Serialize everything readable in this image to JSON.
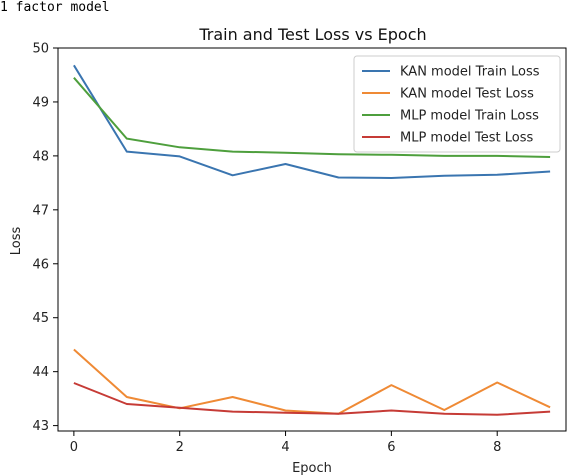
{
  "header_text": "1 factor model",
  "chart_data": {
    "type": "line",
    "title": "Train and Test Loss vs Epoch",
    "xlabel": "Epoch",
    "ylabel": "Loss",
    "xlim": [
      -0.3,
      9.3
    ],
    "ylim": [
      42.9,
      50.0
    ],
    "xticks": [
      0,
      2,
      4,
      6,
      8
    ],
    "yticks": [
      43,
      44,
      45,
      46,
      47,
      48,
      49,
      50
    ],
    "x": [
      0,
      1,
      2,
      3,
      4,
      5,
      6,
      7,
      8,
      9
    ],
    "legend_position": "top-right",
    "grid": false,
    "series": [
      {
        "name": "KAN model Train Loss",
        "color": "#3a75b0",
        "values": [
          49.68,
          48.08,
          47.99,
          47.64,
          47.85,
          47.6,
          47.59,
          47.63,
          47.65,
          47.71
        ]
      },
      {
        "name": "KAN model Test Loss",
        "color": "#ef8a35",
        "values": [
          44.41,
          43.53,
          43.32,
          43.53,
          43.28,
          43.22,
          43.75,
          43.29,
          43.8,
          43.34
        ]
      },
      {
        "name": "MLP model Train Loss",
        "color": "#4e9f3d",
        "values": [
          49.45,
          48.32,
          48.16,
          48.08,
          48.06,
          48.03,
          48.02,
          48.0,
          48.0,
          47.98
        ]
      },
      {
        "name": "MLP model Test Loss",
        "color": "#c63b36",
        "values": [
          43.79,
          43.4,
          43.33,
          43.26,
          43.24,
          43.22,
          43.28,
          43.22,
          43.2,
          43.26
        ]
      }
    ]
  }
}
